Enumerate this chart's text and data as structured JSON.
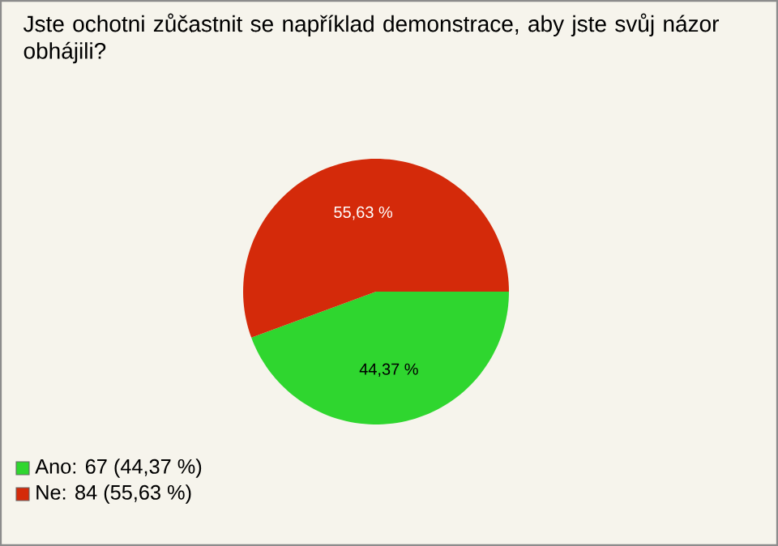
{
  "chart_data": {
    "type": "pie",
    "title": "Jste ochotni zůčastnit se například demonstrace, aby jste svůj názor obhájili?",
    "categories": [
      "Ano: 67 (44,37 %)",
      "Ne: 84 (55,63 %)"
    ],
    "values": [
      44.37,
      55.63
    ],
    "colors": [
      "#2fd62f",
      "#d42a0a"
    ],
    "value_labels": [
      "44,37 %",
      "55,63 %"
    ],
    "legend": "bottom left"
  }
}
